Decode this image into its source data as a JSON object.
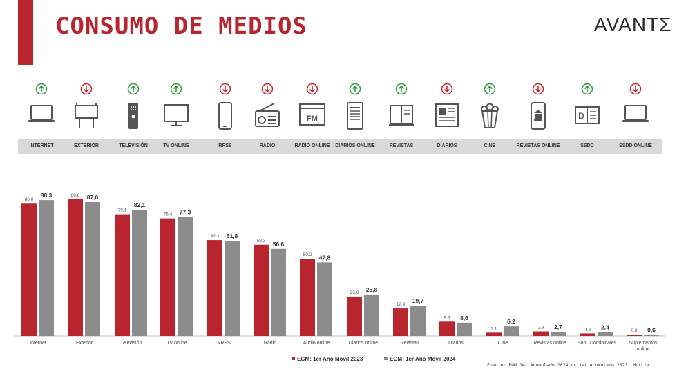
{
  "header": {
    "title": "CONSUMO DE MEDIOS",
    "logo": "AVANTΣ"
  },
  "colors": {
    "accent": "#b8252f",
    "series2023": "#b8252f",
    "series2024": "#8c8c8c",
    "up": "#2f9a3c",
    "down": "#c9252c"
  },
  "media": [
    {
      "label": "INTERNET",
      "trend": "up",
      "icon": "laptop-icon"
    },
    {
      "label": "EXTERIOR",
      "trend": "down",
      "icon": "billboard-icon"
    },
    {
      "label": "TELEVISIÓN",
      "trend": "up",
      "icon": "remote-icon"
    },
    {
      "label": "TV ONLINE",
      "trend": "up",
      "icon": "monitor-icon"
    },
    {
      "label": "RRSS",
      "trend": "down",
      "icon": "smartphone-icon"
    },
    {
      "label": "RADIO",
      "trend": "down",
      "icon": "radio-icon"
    },
    {
      "label": "RADIO ONLINE",
      "trend": "down",
      "icon": "fm-window-icon"
    },
    {
      "label": "DIARIOS ONLINE",
      "trend": "up",
      "icon": "tablet-news-icon"
    },
    {
      "label": "REVISTAS",
      "trend": "up",
      "icon": "magazine-icon"
    },
    {
      "label": "DIARIOS",
      "trend": "down",
      "icon": "newspaper-icon"
    },
    {
      "label": "CINE",
      "trend": "up",
      "icon": "popcorn-icon"
    },
    {
      "label": "REVISTAS ONLINE",
      "trend": "down",
      "icon": "phone-building-icon"
    },
    {
      "label": "SSDD",
      "trend": "up",
      "icon": "supplement-icon"
    },
    {
      "label": "SSDD ONLINE",
      "trend": "down",
      "icon": "laptop-icon"
    }
  ],
  "chart_data": {
    "type": "bar",
    "categories": [
      "Internet",
      "Exterior",
      "Televisión",
      "TV online",
      "RRSS",
      "Radio",
      "Audio online",
      "Diarios online",
      "Revistas",
      "Diarios",
      "Cine",
      "Revistas online",
      "Supl. Dominicales",
      "Suplementos online"
    ],
    "series": [
      {
        "name": "EGM: 1er Año Móvil 2023",
        "values": [
          86.0,
          88.8,
          79.1,
          76.4,
          62.3,
          59.3,
          50.2,
          25.6,
          17.9,
          9.3,
          2.1,
          2.9,
          1.6,
          0.8
        ],
        "labels": [
          "86,0",
          "88,8",
          "79,1",
          "76,4",
          "62,3",
          "59,3",
          "50,2",
          "25,6",
          "17,9",
          "9,3",
          "2,1",
          "2,9",
          "1,6",
          "0,8"
        ]
      },
      {
        "name": "EGM: 1er Año Móvil 2024",
        "values": [
          88.3,
          87.0,
          82.1,
          77.3,
          61.8,
          56.6,
          47.8,
          26.8,
          19.7,
          8.6,
          6.2,
          2.7,
          2.4,
          0.6
        ],
        "labels": [
          "88,3",
          "87,0",
          "82,1",
          "77,3",
          "61,8",
          "56,6",
          "47,8",
          "26,8",
          "19,7",
          "8,6",
          "6,2",
          "2,7",
          "2,4",
          "0,6"
        ]
      }
    ],
    "ylim": [
      0,
      100
    ],
    "grid": false,
    "legend": "bottom-right"
  },
  "footnote": "Fuente: EGM 1er Acumulado 2024 vs 1er Acumulado 2023. Murcia."
}
